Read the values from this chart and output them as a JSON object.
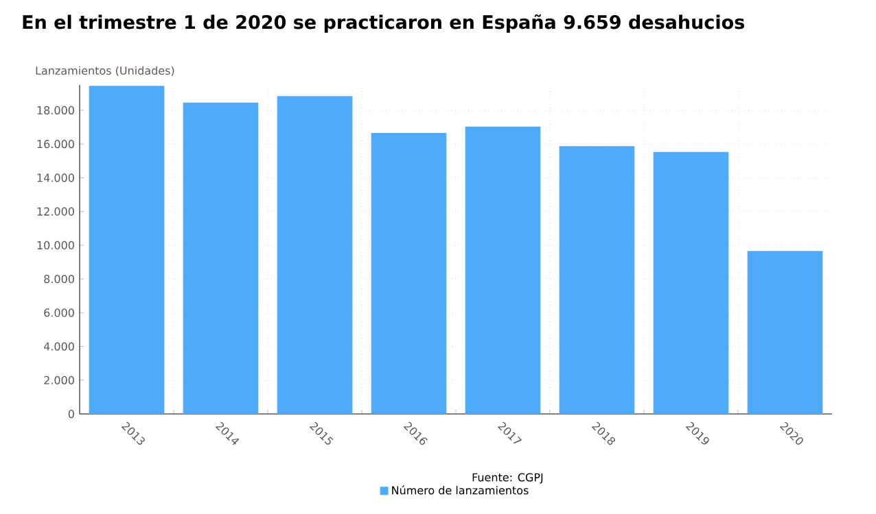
{
  "chart_data": {
    "type": "bar",
    "title": "En el trimestre 1 de 2020 se practicaron en España 9.659 desahucios",
    "ylabel": "Lanzamientos (Unidades)",
    "categories": [
      "2013",
      "2014",
      "2015",
      "2016",
      "2017",
      "2018",
      "2019",
      "2020"
    ],
    "series": [
      {
        "name": "Número de lanzamientos",
        "color": "#4eaafa",
        "values": [
          19450,
          18450,
          18840,
          16660,
          17030,
          15870,
          15530,
          9659
        ]
      }
    ],
    "ylim": [
      0,
      19500
    ],
    "yticks": [
      0,
      {
        "value": 2000,
        "label": "2.000"
      },
      {
        "value": 4000,
        "label": "4.000"
      },
      {
        "value": 6000,
        "label": "6.000"
      },
      {
        "value": 8000,
        "label": "8.000"
      },
      {
        "value": 10000,
        "label": "10.000"
      },
      {
        "value": 12000,
        "label": "12.000"
      },
      {
        "value": 14000,
        "label": "14.000"
      },
      {
        "value": 16000,
        "label": "16.000"
      },
      {
        "value": 18000,
        "label": "18.000"
      }
    ],
    "grid": true,
    "legend": "bottom",
    "annotations": [
      "Fuente: CGPJ"
    ]
  }
}
